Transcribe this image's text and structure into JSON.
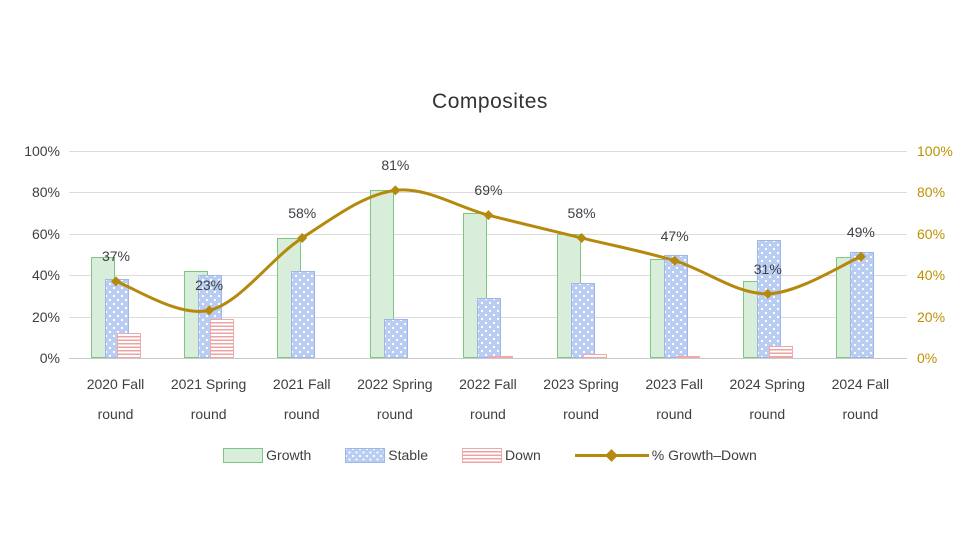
{
  "chart_data": {
    "type": "combo-bar-line",
    "title": "Composites",
    "categories": [
      "2020 Fall",
      "2021 Spring",
      "2021 Fall",
      "2022 Spring",
      "2022 Fall",
      "2023 Spring",
      "2023 Fall",
      "2024 Spring",
      "2024 Fall"
    ],
    "category_second_line": "round",
    "series": [
      {
        "name": "Growth",
        "type": "bar",
        "values": [
          49,
          42,
          58,
          81,
          70,
          60,
          48,
          37,
          49
        ]
      },
      {
        "name": "Stable",
        "type": "bar",
        "values": [
          38,
          40,
          42,
          19,
          29,
          36,
          50,
          57,
          51
        ]
      },
      {
        "name": "Down",
        "type": "bar",
        "values": [
          12,
          19,
          0,
          0,
          1,
          2,
          1,
          6,
          0
        ]
      },
      {
        "name": "% Growth–Down",
        "type": "line",
        "values": [
          37,
          23,
          58,
          81,
          69,
          58,
          47,
          31,
          49
        ],
        "data_labels": [
          "37%",
          "23%",
          "58%",
          "81%",
          "69%",
          "58%",
          "47%",
          "31%",
          "49%"
        ]
      }
    ],
    "y_ticks": [
      "0%",
      "20%",
      "40%",
      "60%",
      "80%",
      "100%"
    ],
    "ylim": [
      0,
      100
    ],
    "grid": true,
    "dual_axis": true,
    "legend_position": "bottom",
    "colors": {
      "growth_fill": "#d8edda",
      "growth_border": "#7fc67f",
      "stable_fill": "#b9ccf2",
      "stable_border": "#9fb6e8",
      "down_stripe": "#eba3a3",
      "down_border": "#f0a8a8",
      "line": "#b5890d",
      "right_axis_text": "#bf9000",
      "left_axis_text": "#404040",
      "title_text": "#333333",
      "gridline": "#dcdcdc"
    }
  }
}
